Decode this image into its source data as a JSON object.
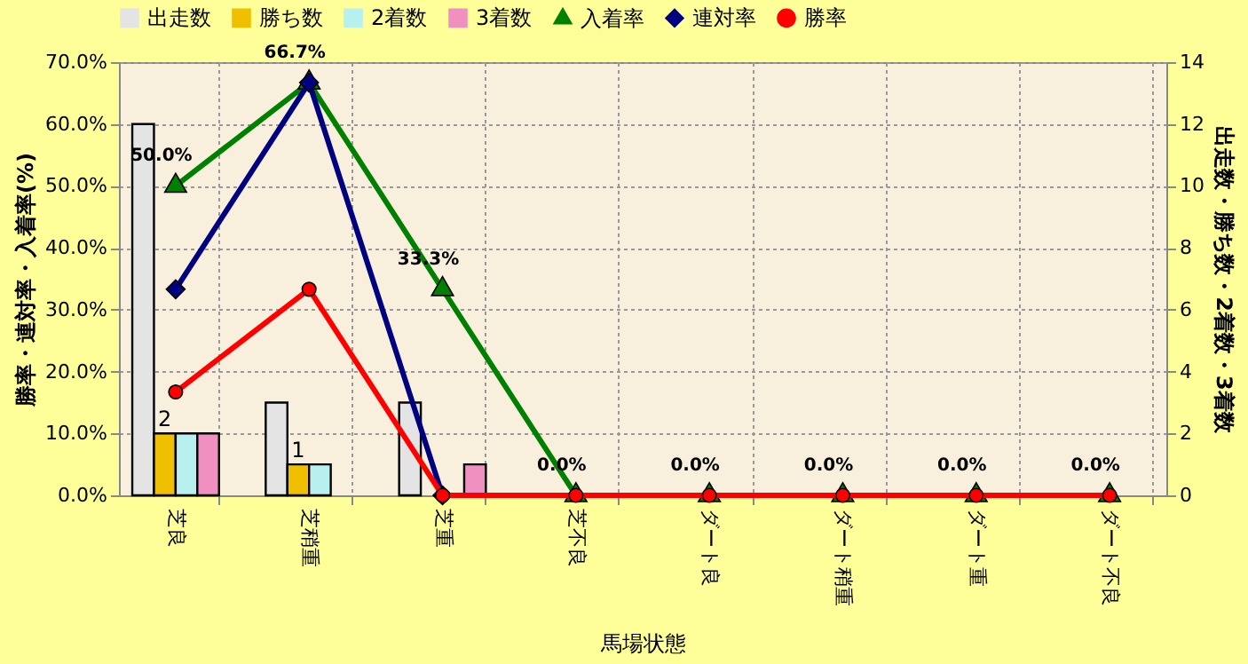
{
  "chart_data": {
    "type": "bar",
    "xlabel": "馬場状態",
    "ylabel": "勝率・連対率・入着率(%)",
    "y2label": "出走数・勝ち数・2着数・3着数",
    "categories": [
      "芝良",
      "芝稍重",
      "芝重",
      "芝不良",
      "ダート良",
      "ダート稍重",
      "ダート重",
      "ダート不良"
    ],
    "ylim": [
      0,
      70
    ],
    "yticks": [
      {
        "value": 0,
        "label": "0.0%"
      },
      {
        "value": 10,
        "label": "10.0%"
      },
      {
        "value": 20,
        "label": "20.0%"
      },
      {
        "value": 30,
        "label": "30.0%"
      },
      {
        "value": 40,
        "label": "40.0%"
      },
      {
        "value": 50,
        "label": "50.0%"
      },
      {
        "value": 60,
        "label": "60.0%"
      },
      {
        "value": 70,
        "label": "70.0%"
      }
    ],
    "y2lim": [
      0,
      14
    ],
    "y2ticks": [
      0,
      2,
      4,
      6,
      8,
      10,
      12,
      14
    ],
    "grid": true,
    "legend": "top",
    "series": [
      {
        "name": "出走数",
        "type": "bar",
        "axis": "y2",
        "color": "#e4e4e4",
        "values": [
          12,
          3,
          3,
          0,
          0,
          0,
          0,
          0
        ]
      },
      {
        "name": "勝ち数",
        "type": "bar",
        "axis": "y2",
        "color": "#f0c000",
        "values": [
          2,
          1,
          0,
          0,
          0,
          0,
          0,
          0
        ],
        "value_labels": [
          "2",
          "1",
          null,
          null,
          null,
          null,
          null,
          null
        ]
      },
      {
        "name": "2着数",
        "type": "bar",
        "axis": "y2",
        "color": "#b8f0f0",
        "values": [
          2,
          1,
          0,
          0,
          0,
          0,
          0,
          0
        ]
      },
      {
        "name": "3着数",
        "type": "bar",
        "axis": "y2",
        "color": "#f090c0",
        "values": [
          2,
          0,
          1,
          0,
          0,
          0,
          0,
          0
        ]
      },
      {
        "name": "入着率",
        "type": "line",
        "marker": "triangle",
        "color": "#008000",
        "values": [
          50.0,
          66.7,
          33.3,
          0,
          0,
          0,
          0,
          0
        ],
        "value_labels": [
          "50.0%",
          "66.7%",
          "33.3%",
          "0.0%",
          "0.0%",
          "0.0%",
          "0.0%",
          "0.0%"
        ]
      },
      {
        "name": "連対率",
        "type": "line",
        "marker": "diamond",
        "color": "#000080",
        "values": [
          33.3,
          66.7,
          0,
          null,
          null,
          null,
          null,
          null
        ]
      },
      {
        "name": "勝率",
        "type": "line",
        "marker": "circle",
        "color": "#ff0000",
        "values": [
          16.7,
          33.3,
          0,
          0,
          0,
          0,
          0,
          0
        ]
      }
    ]
  }
}
